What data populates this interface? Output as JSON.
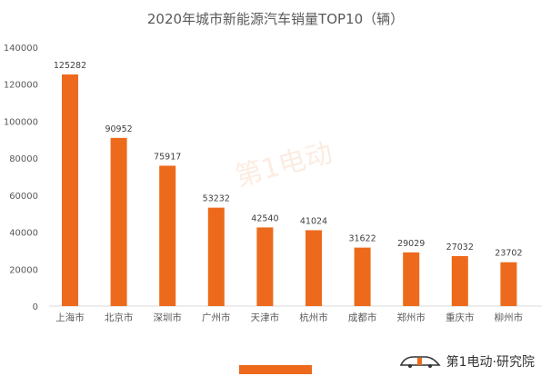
{
  "title": "2020年城市新能源汽车销量TOP10（辆）",
  "brand_text": "第1电动·研究院",
  "watermark_text": "第1电动",
  "accent_color": "#ED6A1C",
  "chart_data": {
    "type": "bar",
    "title": "2020年城市新能源汽车销量TOP10（辆）",
    "categories": [
      "上海市",
      "北京市",
      "深圳市",
      "广州市",
      "天津市",
      "杭州市",
      "成都市",
      "郑州市",
      "重庆市",
      "柳州市"
    ],
    "values": [
      125282,
      90952,
      75917,
      53232,
      42540,
      41024,
      31622,
      29029,
      27032,
      23702
    ],
    "ylim": [
      0,
      140000
    ],
    "yticks": [
      0,
      20000,
      40000,
      60000,
      80000,
      100000,
      120000,
      140000
    ],
    "grid": false,
    "legend": "bottom",
    "bar_color": "#ED6A1C"
  }
}
